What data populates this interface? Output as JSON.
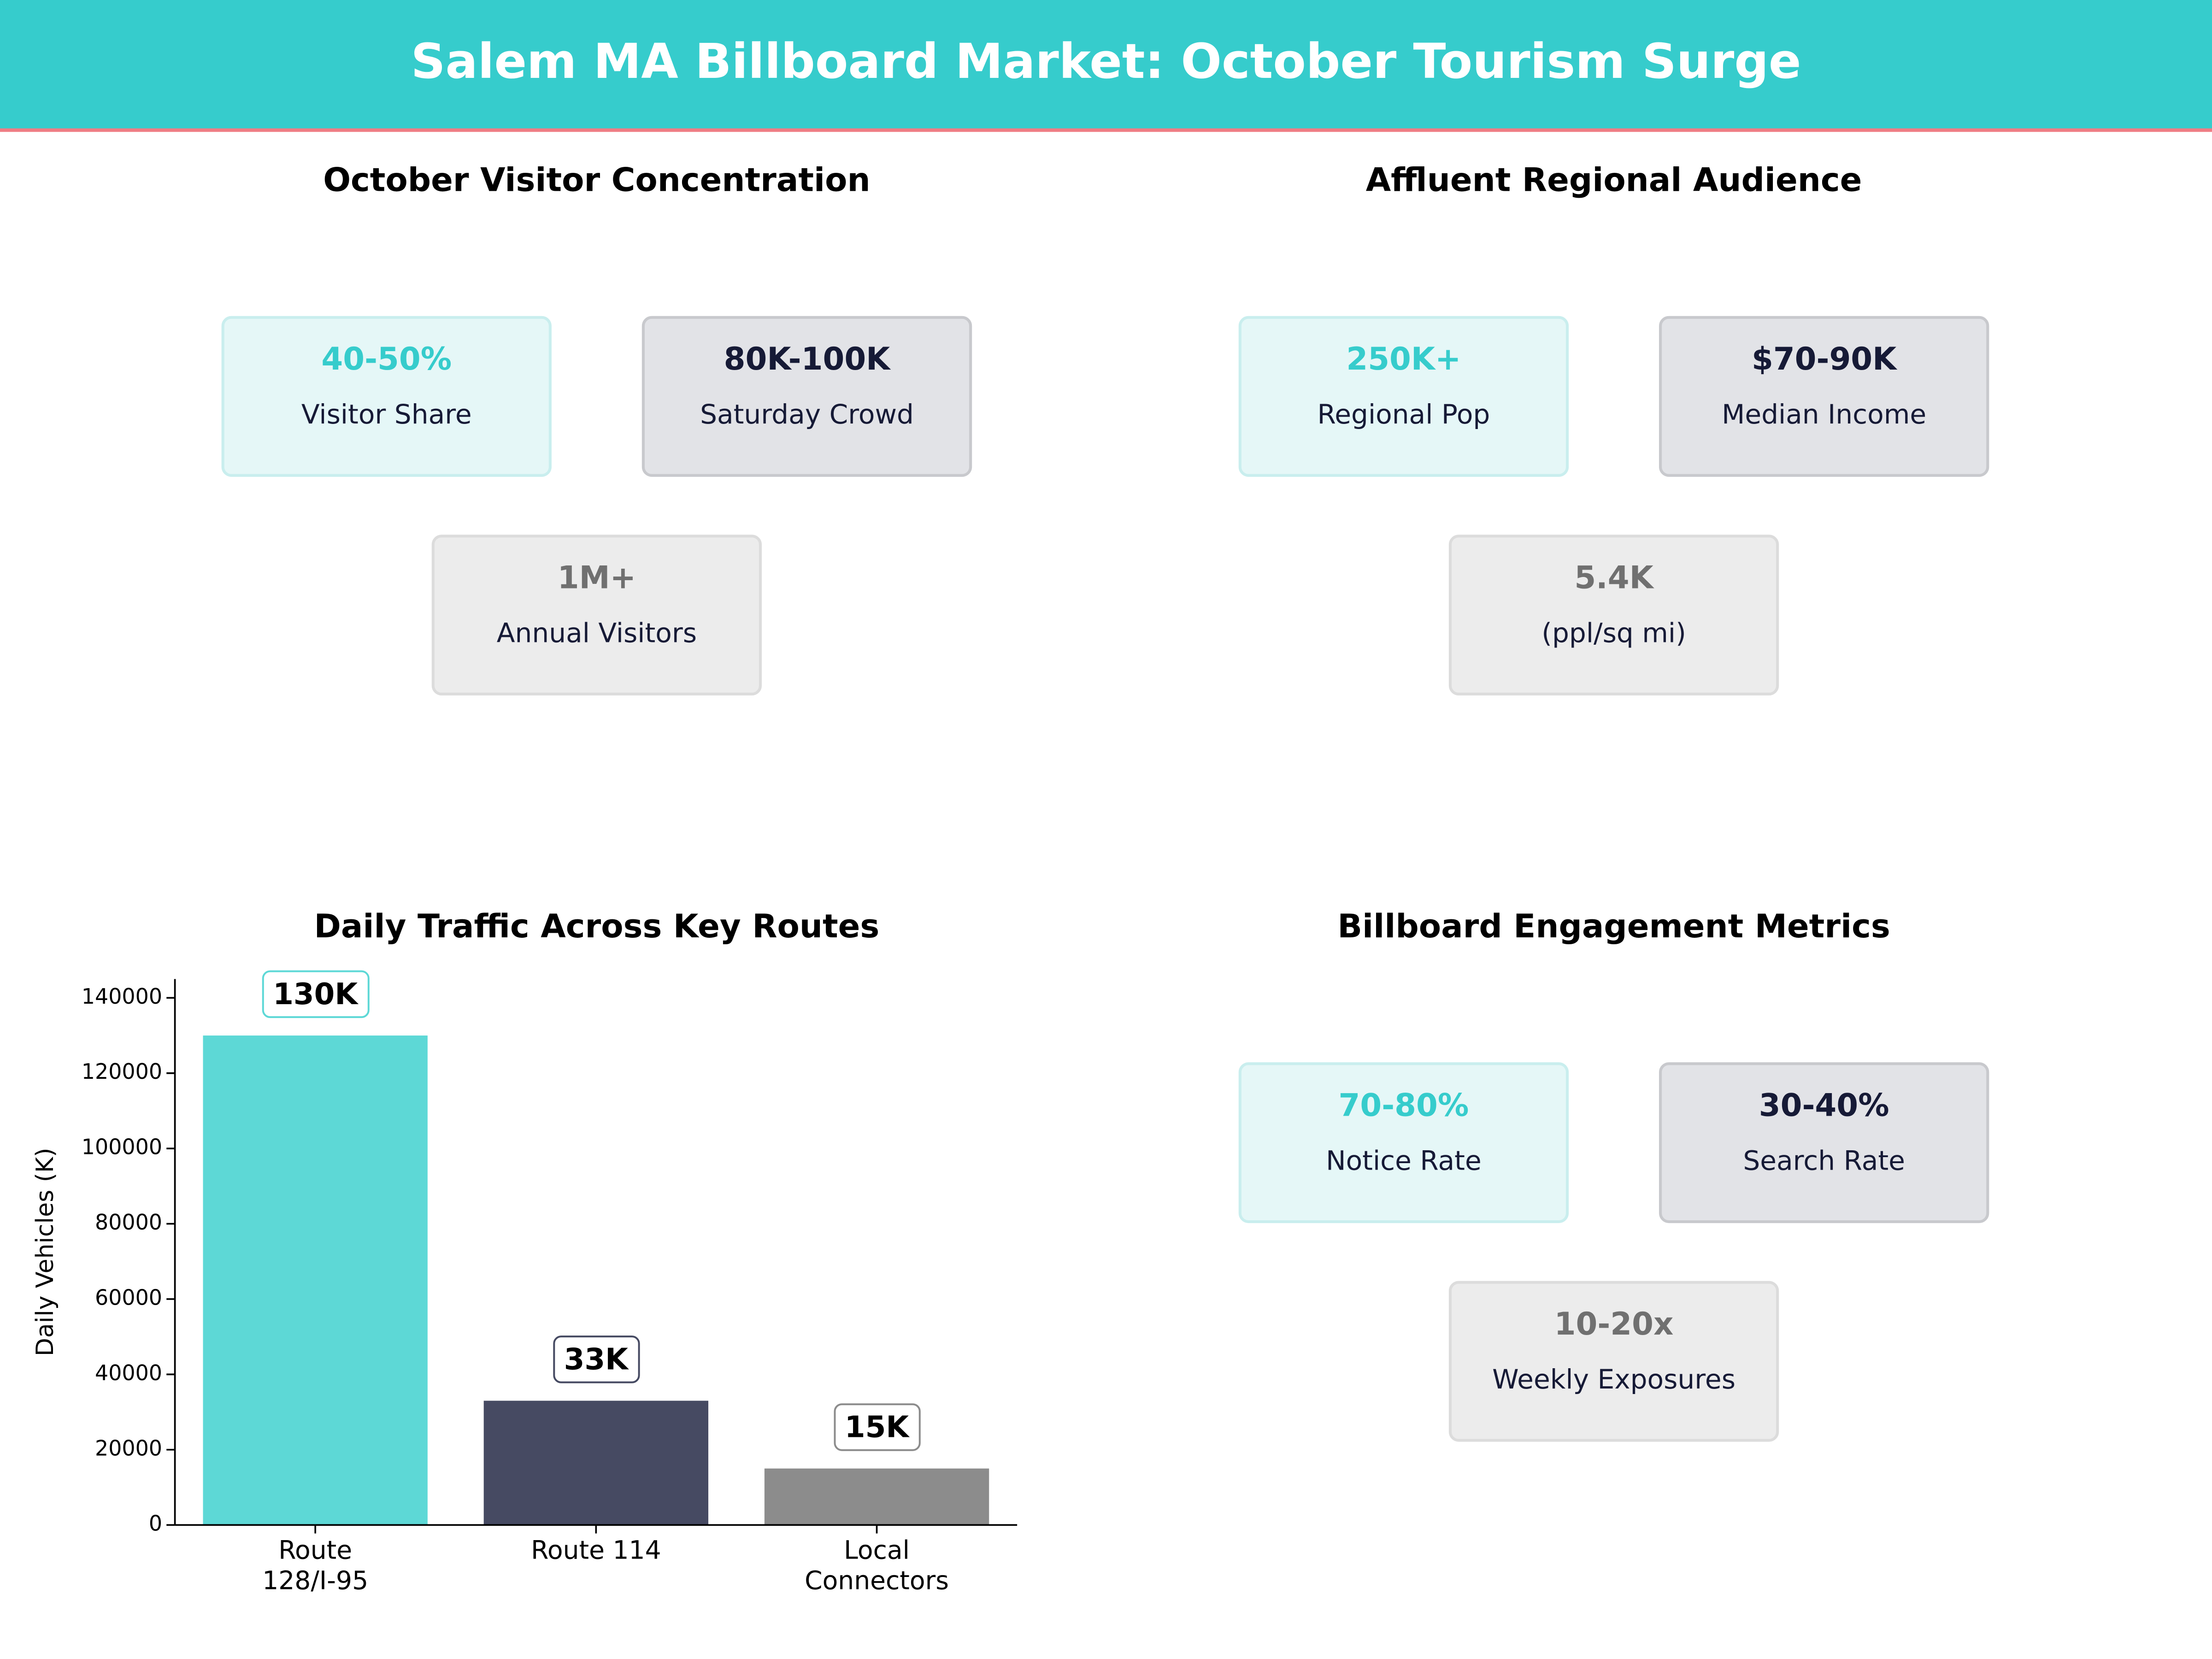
{
  "header": {
    "title": "Salem MA Billboard Market: October Tourism Surge"
  },
  "panels": [
    {
      "title": "October Visitor Concentration",
      "cards": [
        {
          "value": "40-50%",
          "label": "Visitor Share"
        },
        {
          "value": "80K-100K",
          "label": "Saturday Crowd"
        },
        {
          "value": "1M+",
          "label": "Annual Visitors"
        }
      ]
    },
    {
      "title": "Affluent Regional Audience",
      "cards": [
        {
          "value": "250K+",
          "label": "Regional Pop"
        },
        {
          "value": "$70-90K",
          "label": "Median Income"
        },
        {
          "value": "5.4K",
          "label": "(ppl/sq mi)"
        }
      ]
    },
    {
      "title": "Billboard Engagement Metrics",
      "cards": [
        {
          "value": "70-80%",
          "label": "Notice Rate"
        },
        {
          "value": "30-40%",
          "label": "Search Rate"
        },
        {
          "value": "10-20x",
          "label": "Weekly Exposures"
        }
      ]
    }
  ],
  "chart_data": {
    "type": "bar",
    "title": "Daily Traffic Across Key Routes",
    "y_label": "Daily Vehicles (K)",
    "categories": [
      "Route\n128/I-95",
      "Route 114",
      "Local\nConnectors"
    ],
    "values": [
      130000,
      33000,
      15000
    ],
    "value_labels": [
      "130K",
      "33K",
      "15K"
    ],
    "colors": [
      "#5dd8d6",
      "#464a62",
      "#8c8c8c"
    ],
    "ylim": [
      0,
      145000
    ],
    "yticks": [
      0,
      20000,
      40000,
      60000,
      80000,
      100000,
      120000,
      140000
    ]
  }
}
